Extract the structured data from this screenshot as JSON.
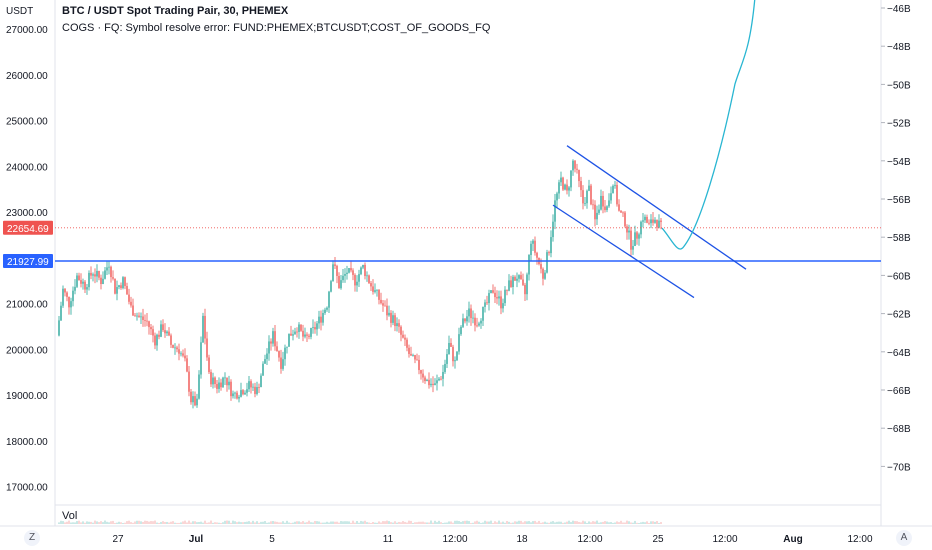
{
  "header": {
    "title": "BTC / USDT Spot Trading Pair, 30, PHEMEX",
    "error": "COGS · FQ: Symbol resolve error: FUND:PHEMEX;BTCUSDT;COST_OF_GOODS_FQ"
  },
  "left_axis": {
    "unit": "USDT",
    "ticks": [
      "27000.00",
      "26000.00",
      "25000.00",
      "24000.00",
      "23000.00",
      "22000.00",
      "21000.00",
      "20000.00",
      "19000.00",
      "18000.00",
      "17000.00"
    ]
  },
  "right_axis": {
    "ticks": [
      "−46B",
      "−48B",
      "−50B",
      "−52B",
      "−54B",
      "−56B",
      "−58B",
      "−60B",
      "−62B",
      "−64B",
      "−66B",
      "−68B",
      "−70B"
    ]
  },
  "x_axis": {
    "ticks": [
      "27",
      "Jul",
      "5",
      "11",
      "12:00",
      "18",
      "12:00",
      "25",
      "12:00",
      "Aug",
      "12:00"
    ]
  },
  "volume_label": "Vol",
  "bottom_icons": {
    "left": "Z",
    "right": "A"
  },
  "price_labels": {
    "last_price": "22654.69",
    "horizontal_level": "21927.99"
  },
  "colors": {
    "up": "#26a69a",
    "down": "#ef5350",
    "drawing_blue": "#1e53e5",
    "projection": "#29b6d2",
    "last_price": "#ef5350",
    "level": "#2962ff"
  },
  "chart_data": {
    "type": "candlestick",
    "title": "BTC / USDT Spot Trading Pair, 30, PHEMEX",
    "ylabel": "USDT",
    "ylim": [
      16500,
      27400
    ],
    "horizontal_level": 21927.99,
    "last_price": 22654.69,
    "price_path": [
      [
        0,
        20300
      ],
      [
        6,
        21300
      ],
      [
        12,
        21000
      ],
      [
        20,
        21600
      ],
      [
        28,
        21400
      ],
      [
        36,
        21700
      ],
      [
        44,
        21500
      ],
      [
        52,
        21900
      ],
      [
        58,
        21300
      ],
      [
        66,
        21500
      ],
      [
        74,
        20900
      ],
      [
        82,
        20700
      ],
      [
        90,
        20600
      ],
      [
        98,
        20200
      ],
      [
        106,
        20500
      ],
      [
        114,
        20100
      ],
      [
        122,
        20000
      ],
      [
        128,
        19700
      ],
      [
        134,
        18900
      ],
      [
        140,
        18800
      ],
      [
        146,
        20700
      ],
      [
        152,
        19400
      ],
      [
        160,
        19200
      ],
      [
        168,
        19400
      ],
      [
        176,
        19000
      ],
      [
        184,
        19100
      ],
      [
        192,
        19200
      ],
      [
        200,
        19100
      ],
      [
        208,
        19800
      ],
      [
        216,
        20300
      ],
      [
        224,
        19700
      ],
      [
        232,
        20300
      ],
      [
        240,
        20500
      ],
      [
        248,
        20200
      ],
      [
        256,
        20400
      ],
      [
        264,
        20700
      ],
      [
        270,
        21000
      ],
      [
        276,
        21900
      ],
      [
        282,
        21400
      ],
      [
        290,
        21700
      ],
      [
        298,
        21500
      ],
      [
        306,
        21800
      ],
      [
        314,
        21400
      ],
      [
        322,
        21100
      ],
      [
        330,
        20800
      ],
      [
        338,
        20600
      ],
      [
        346,
        20200
      ],
      [
        354,
        19800
      ],
      [
        362,
        19600
      ],
      [
        370,
        19300
      ],
      [
        378,
        19200
      ],
      [
        386,
        19500
      ],
      [
        392,
        20100
      ],
      [
        398,
        19700
      ],
      [
        404,
        20500
      ],
      [
        412,
        20800
      ],
      [
        420,
        20600
      ],
      [
        428,
        20900
      ],
      [
        436,
        21300
      ],
      [
        444,
        21000
      ],
      [
        452,
        21400
      ],
      [
        460,
        21600
      ],
      [
        468,
        21200
      ],
      [
        474,
        22400
      ],
      [
        480,
        22000
      ],
      [
        486,
        21600
      ],
      [
        492,
        22200
      ],
      [
        498,
        23200
      ],
      [
        504,
        23700
      ],
      [
        510,
        23400
      ],
      [
        516,
        24100
      ],
      [
        520,
        23800
      ],
      [
        526,
        23200
      ],
      [
        532,
        23500
      ],
      [
        538,
        22800
      ],
      [
        544,
        23300
      ],
      [
        550,
        23100
      ],
      [
        556,
        23700
      ],
      [
        562,
        23000
      ],
      [
        568,
        22800
      ],
      [
        574,
        22300
      ],
      [
        580,
        22500
      ],
      [
        586,
        22900
      ],
      [
        592,
        22700
      ],
      [
        598,
        22850
      ],
      [
        604,
        22654.69
      ]
    ],
    "volume_ticks": true,
    "drawings": {
      "channel_upper": [
        [
          24400,
          "Jul 19"
        ],
        [
          21800,
          "Jul 26"
        ]
      ],
      "channel_lower": [
        [
          23200,
          "Jul 18"
        ],
        [
          21100,
          "Jul 25"
        ]
      ]
    },
    "projection_path": [
      [
        22654.69,
        "now"
      ],
      [
        22300,
        "+0.5d"
      ],
      [
        22400,
        "+1d"
      ],
      [
        24000,
        "+2d"
      ],
      [
        26000,
        "+3d"
      ],
      [
        27700,
        "+3.5d"
      ]
    ]
  }
}
